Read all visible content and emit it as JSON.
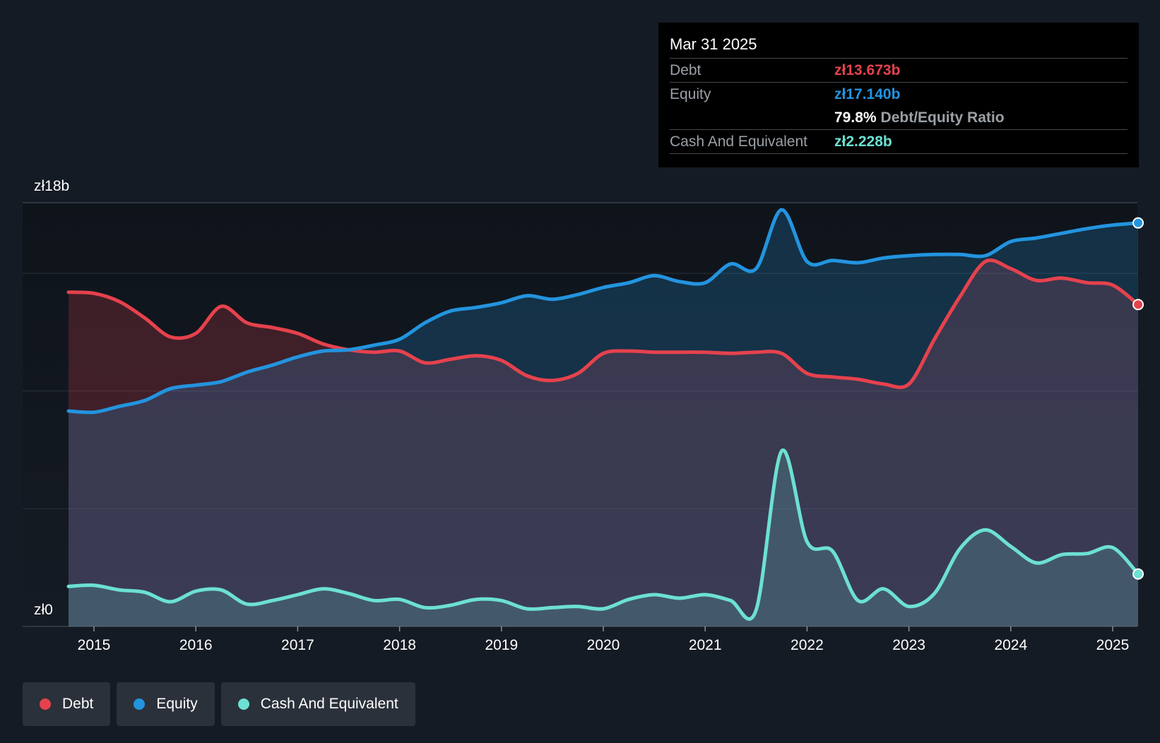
{
  "tooltip": {
    "date": "Mar 31 2025",
    "debt_label": "Debt",
    "debt_value": "zł13.673b",
    "equity_label": "Equity",
    "equity_value": "zł17.140b",
    "ratio_value": "79.8%",
    "ratio_label": "Debt/Equity Ratio",
    "cash_label": "Cash And Equivalent",
    "cash_value": "zł2.228b"
  },
  "legend": {
    "debt": "Debt",
    "equity": "Equity",
    "cash": "Cash And Equivalent"
  },
  "colors": {
    "debt": "#e5424d",
    "equity": "#2394df",
    "cash": "#6ce0d3",
    "background": "#151b24"
  },
  "chart_data": {
    "type": "area",
    "title": "",
    "xlabel": "",
    "ylabel": "",
    "y_axis_labels": [
      "zł18b",
      "zł0"
    ],
    "ylim": [
      0,
      18
    ],
    "xlim": [
      2014.4,
      2025.25
    ],
    "x_ticks": [
      2015,
      2016,
      2017,
      2018,
      2019,
      2020,
      2021,
      2022,
      2023,
      2024,
      2025
    ],
    "x_tick_labels": [
      "2015",
      "2016",
      "2017",
      "2018",
      "2019",
      "2020",
      "2021",
      "2022",
      "2023",
      "2024",
      "2025"
    ],
    "series": [
      {
        "name": "Debt",
        "x": [
          2014.75,
          2015.0,
          2015.25,
          2015.5,
          2015.75,
          2016.0,
          2016.25,
          2016.5,
          2016.75,
          2017.0,
          2017.25,
          2017.5,
          2017.75,
          2018.0,
          2018.25,
          2018.5,
          2018.75,
          2019.0,
          2019.25,
          2019.5,
          2019.75,
          2020.0,
          2020.25,
          2020.5,
          2020.75,
          2021.0,
          2021.25,
          2021.5,
          2021.75,
          2022.0,
          2022.25,
          2022.5,
          2022.75,
          2023.0,
          2023.25,
          2023.5,
          2023.75,
          2024.0,
          2024.25,
          2024.5,
          2024.75,
          2025.0,
          2025.25
        ],
        "values": [
          14.2,
          14.15,
          13.8,
          13.1,
          12.3,
          12.45,
          13.6,
          12.9,
          12.7,
          12.45,
          12.0,
          11.75,
          11.65,
          11.7,
          11.2,
          11.35,
          11.5,
          11.3,
          10.65,
          10.45,
          10.75,
          11.6,
          11.7,
          11.65,
          11.65,
          11.65,
          11.6,
          11.65,
          11.6,
          10.75,
          10.6,
          10.5,
          10.3,
          10.3,
          12.2,
          14.0,
          15.5,
          15.2,
          14.7,
          14.8,
          14.6,
          14.5,
          13.673
        ]
      },
      {
        "name": "Equity",
        "x": [
          2014.75,
          2015.0,
          2015.25,
          2015.5,
          2015.75,
          2016.0,
          2016.25,
          2016.5,
          2016.75,
          2017.0,
          2017.25,
          2017.5,
          2017.75,
          2018.0,
          2018.25,
          2018.5,
          2018.75,
          2019.0,
          2019.25,
          2019.5,
          2019.75,
          2020.0,
          2020.25,
          2020.5,
          2020.75,
          2021.0,
          2021.25,
          2021.5,
          2021.75,
          2022.0,
          2022.25,
          2022.5,
          2022.75,
          2023.0,
          2023.25,
          2023.5,
          2023.75,
          2024.0,
          2024.25,
          2024.5,
          2024.75,
          2025.0,
          2025.25
        ],
        "values": [
          9.15,
          9.1,
          9.35,
          9.6,
          10.1,
          10.25,
          10.4,
          10.8,
          11.1,
          11.45,
          11.7,
          11.75,
          11.95,
          12.2,
          12.9,
          13.4,
          13.55,
          13.75,
          14.05,
          13.9,
          14.1,
          14.4,
          14.6,
          14.9,
          14.65,
          14.6,
          15.4,
          15.2,
          17.7,
          15.5,
          15.55,
          15.45,
          15.65,
          15.75,
          15.8,
          15.8,
          15.75,
          16.35,
          16.5,
          16.7,
          16.9,
          17.05,
          17.14
        ]
      },
      {
        "name": "Cash And Equivalent",
        "x": [
          2014.75,
          2015.0,
          2015.25,
          2015.5,
          2015.75,
          2016.0,
          2016.25,
          2016.5,
          2016.75,
          2017.0,
          2017.25,
          2017.5,
          2017.75,
          2018.0,
          2018.25,
          2018.5,
          2018.75,
          2019.0,
          2019.25,
          2019.5,
          2019.75,
          2020.0,
          2020.25,
          2020.5,
          2020.75,
          2021.0,
          2021.25,
          2021.5,
          2021.75,
          2022.0,
          2022.25,
          2022.5,
          2022.75,
          2023.0,
          2023.25,
          2023.5,
          2023.75,
          2024.0,
          2024.25,
          2024.5,
          2024.75,
          2025.0,
          2025.25
        ],
        "values": [
          1.7,
          1.75,
          1.55,
          1.45,
          1.05,
          1.5,
          1.55,
          0.95,
          1.1,
          1.35,
          1.6,
          1.4,
          1.1,
          1.15,
          0.8,
          0.9,
          1.15,
          1.1,
          0.75,
          0.8,
          0.85,
          0.75,
          1.15,
          1.35,
          1.2,
          1.35,
          1.1,
          0.7,
          7.45,
          3.6,
          3.2,
          1.1,
          1.6,
          0.85,
          1.4,
          3.3,
          4.1,
          3.4,
          2.7,
          3.05,
          3.1,
          3.35,
          2.228
        ]
      }
    ]
  }
}
